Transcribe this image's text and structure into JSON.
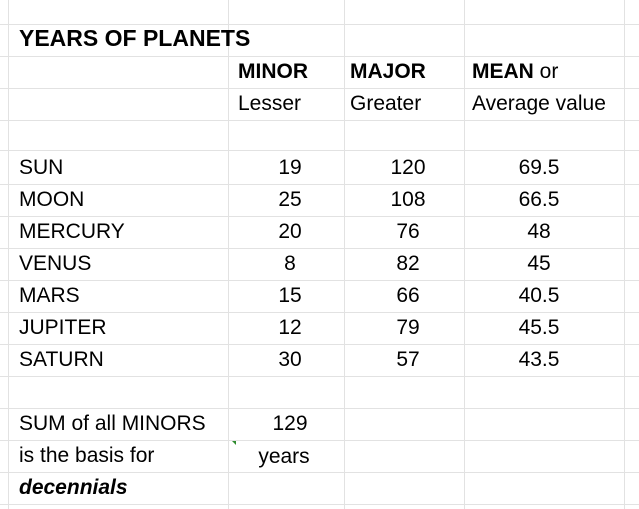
{
  "title": "YEARS OF PLANETS",
  "headers": {
    "minor": "MINOR",
    "major": "MAJOR",
    "mean": "MEAN",
    "mean_suffix": " or",
    "minor_sub": "Lesser",
    "major_sub": "Greater",
    "mean_sub": "Average value"
  },
  "rows": [
    {
      "planet": "SUN",
      "minor": "19",
      "major": "120",
      "mean": "69.5"
    },
    {
      "planet": "MOON",
      "minor": "25",
      "major": "108",
      "mean": "66.5"
    },
    {
      "planet": "MERCURY",
      "minor": "20",
      "major": "76",
      "mean": "48"
    },
    {
      "planet": "VENUS",
      "minor": "8",
      "major": "82",
      "mean": "45"
    },
    {
      "planet": "MARS",
      "minor": "15",
      "major": "66",
      "mean": "40.5"
    },
    {
      "planet": "JUPITER",
      "minor": "12",
      "major": "79",
      "mean": "45.5"
    },
    {
      "planet": "SATURN",
      "minor": "30",
      "major": "57",
      "mean": "43.5"
    }
  ],
  "footer": {
    "line1": "SUM of all MINORS",
    "line2": "is the basis for",
    "line3": "decennials",
    "sum_value": "129",
    "sum_unit": "years"
  },
  "colors": {
    "gridline": "#e2e2e2",
    "comment_marker": "#2e8b2e"
  }
}
